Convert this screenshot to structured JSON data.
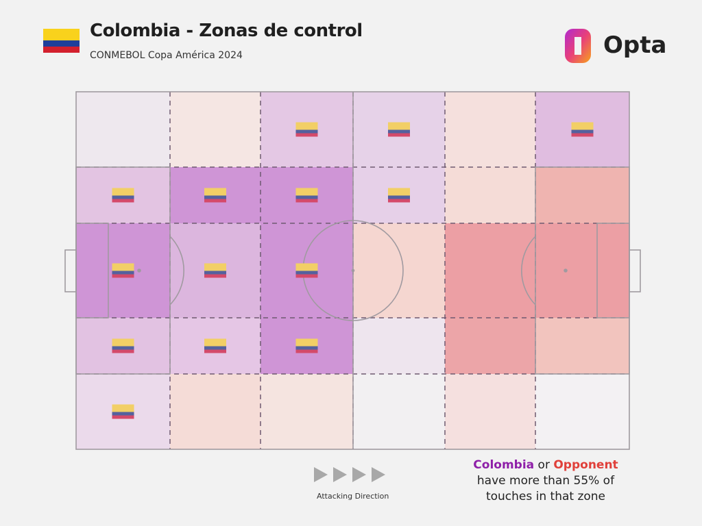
{
  "header": {
    "title": "Colombia - Zonas de control",
    "subtitle": "CONMEBOL Copa América 2024",
    "flag_icon": "colombia-flag-icon",
    "brand": "Opta"
  },
  "colors": {
    "colombia": "#8e1fa8",
    "opponent": "#e0403a",
    "flag_yellow": "#f2cf66",
    "flag_blue": "#55619e",
    "flag_red": "#d44a6a",
    "pitch_line": "#a09aa0"
  },
  "chart_data": {
    "type": "heatmap",
    "title": "Colombia - Zonas de control",
    "subtitle": "CONMEBOL Copa América 2024",
    "grid": {
      "columns": 6,
      "rows": 5
    },
    "threshold_percent": 55,
    "cells": [
      [
        {
          "fill": "#eee8ee",
          "flag": false
        },
        {
          "fill": "#f5e6e3",
          "flag": false
        },
        {
          "fill": "#e4c8e4",
          "flag": true
        },
        {
          "fill": "#e6d2e8",
          "flag": true
        },
        {
          "fill": "#f5e0dd",
          "flag": false
        },
        {
          "fill": "#e0bde0",
          "flag": true
        }
      ],
      [
        {
          "fill": "#e3c4e2",
          "flag": true
        },
        {
          "fill": "#cf95d6",
          "flag": true
        },
        {
          "fill": "#cf95d6",
          "flag": true
        },
        {
          "fill": "#e6d0e8",
          "flag": true
        },
        {
          "fill": "#f5dcd7",
          "flag": false
        },
        {
          "fill": "#efb4b0",
          "flag": false
        }
      ],
      [
        {
          "fill": "#cf95d6",
          "flag": true
        },
        {
          "fill": "#dcb6de",
          "flag": true
        },
        {
          "fill": "#cf95d6",
          "flag": true
        },
        {
          "fill": "#f5d6d0",
          "flag": false
        },
        {
          "fill": "#ec9fa4",
          "flag": false
        },
        {
          "fill": "#ec9fa4",
          "flag": false
        }
      ],
      [
        {
          "fill": "#e2c2e2",
          "flag": true
        },
        {
          "fill": "#e5c6e5",
          "flag": true
        },
        {
          "fill": "#cf95d6",
          "flag": true
        },
        {
          "fill": "#eee5ee",
          "flag": false
        },
        {
          "fill": "#eca5a8",
          "flag": false
        },
        {
          "fill": "#f2c4be",
          "flag": false
        }
      ],
      [
        {
          "fill": "#ebdaeb",
          "flag": true
        },
        {
          "fill": "#f5dcd7",
          "flag": false
        },
        {
          "fill": "#f5e4e0",
          "flag": false
        },
        {
          "fill": "#f2f0f2",
          "flag": false
        },
        {
          "fill": "#f5e0df",
          "flag": false
        },
        {
          "fill": "#f3f1f3",
          "flag": false
        }
      ]
    ]
  },
  "footer": {
    "attacking_direction": "Attacking Direction",
    "legend_colombia": "Colombia",
    "legend_or": " or ",
    "legend_opponent": "Opponent",
    "legend_line2": "have more than 55% of",
    "legend_line3": "touches in that zone"
  }
}
